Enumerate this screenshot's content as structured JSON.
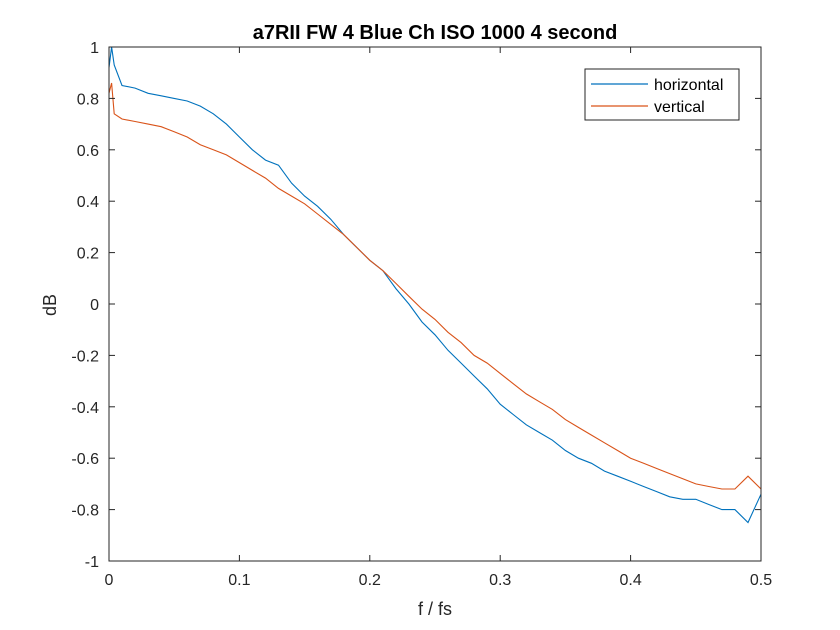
{
  "chart_data": {
    "type": "line",
    "title": "a7RII FW 4 Blue Ch ISO 1000 4 second",
    "xlabel": "f / fs",
    "ylabel": "dB",
    "xlim": [
      0,
      0.5
    ],
    "ylim": [
      -1,
      1
    ],
    "xticks": [
      0,
      0.1,
      0.2,
      0.3,
      0.4,
      0.5
    ],
    "xtick_labels": [
      "0",
      "0.1",
      "0.2",
      "0.3",
      "0.4",
      "0.5"
    ],
    "yticks": [
      -1,
      -0.8,
      -0.6,
      -0.4,
      -0.2,
      0,
      0.2,
      0.4,
      0.6,
      0.8,
      1
    ],
    "ytick_labels": [
      "-1",
      "-0.8",
      "-0.6",
      "-0.4",
      "-0.2",
      "0",
      "0.2",
      "0.4",
      "0.6",
      "0.8",
      "1"
    ],
    "grid": false,
    "legend_position": "top-right",
    "series": [
      {
        "name": "horizontal",
        "color": "#0072BD",
        "x": [
          0,
          0.002,
          0.004,
          0.01,
          0.02,
          0.03,
          0.04,
          0.05,
          0.06,
          0.07,
          0.08,
          0.09,
          0.1,
          0.11,
          0.12,
          0.13,
          0.14,
          0.15,
          0.16,
          0.17,
          0.18,
          0.19,
          0.2,
          0.21,
          0.22,
          0.23,
          0.24,
          0.25,
          0.26,
          0.27,
          0.28,
          0.29,
          0.3,
          0.31,
          0.32,
          0.33,
          0.34,
          0.35,
          0.36,
          0.37,
          0.38,
          0.39,
          0.4,
          0.41,
          0.42,
          0.43,
          0.44,
          0.45,
          0.46,
          0.47,
          0.48,
          0.49,
          0.5
        ],
        "y": [
          0.92,
          1.0,
          0.93,
          0.85,
          0.84,
          0.82,
          0.81,
          0.8,
          0.79,
          0.77,
          0.74,
          0.7,
          0.65,
          0.6,
          0.56,
          0.54,
          0.47,
          0.42,
          0.38,
          0.33,
          0.27,
          0.22,
          0.17,
          0.13,
          0.06,
          0.0,
          -0.07,
          -0.12,
          -0.18,
          -0.23,
          -0.28,
          -0.33,
          -0.39,
          -0.43,
          -0.47,
          -0.5,
          -0.53,
          -0.57,
          -0.6,
          -0.62,
          -0.65,
          -0.67,
          -0.69,
          -0.71,
          -0.73,
          -0.75,
          -0.76,
          -0.76,
          -0.78,
          -0.8,
          -0.8,
          -0.85,
          -0.74
        ]
      },
      {
        "name": "vertical",
        "color": "#D95319",
        "x": [
          0,
          0.002,
          0.004,
          0.01,
          0.02,
          0.03,
          0.04,
          0.05,
          0.06,
          0.07,
          0.08,
          0.09,
          0.1,
          0.11,
          0.12,
          0.13,
          0.14,
          0.15,
          0.16,
          0.17,
          0.18,
          0.19,
          0.2,
          0.21,
          0.22,
          0.23,
          0.24,
          0.25,
          0.26,
          0.27,
          0.28,
          0.29,
          0.3,
          0.31,
          0.32,
          0.33,
          0.34,
          0.35,
          0.36,
          0.37,
          0.38,
          0.39,
          0.4,
          0.41,
          0.42,
          0.43,
          0.44,
          0.45,
          0.46,
          0.47,
          0.48,
          0.49,
          0.5
        ],
        "y": [
          0.82,
          0.86,
          0.74,
          0.72,
          0.71,
          0.7,
          0.69,
          0.67,
          0.65,
          0.62,
          0.6,
          0.58,
          0.55,
          0.52,
          0.49,
          0.45,
          0.42,
          0.39,
          0.35,
          0.31,
          0.27,
          0.22,
          0.17,
          0.13,
          0.08,
          0.03,
          -0.02,
          -0.06,
          -0.11,
          -0.15,
          -0.2,
          -0.23,
          -0.27,
          -0.31,
          -0.35,
          -0.38,
          -0.41,
          -0.45,
          -0.48,
          -0.51,
          -0.54,
          -0.57,
          -0.6,
          -0.62,
          -0.64,
          -0.66,
          -0.68,
          -0.7,
          -0.71,
          -0.72,
          -0.72,
          -0.67,
          -0.72
        ]
      }
    ]
  }
}
